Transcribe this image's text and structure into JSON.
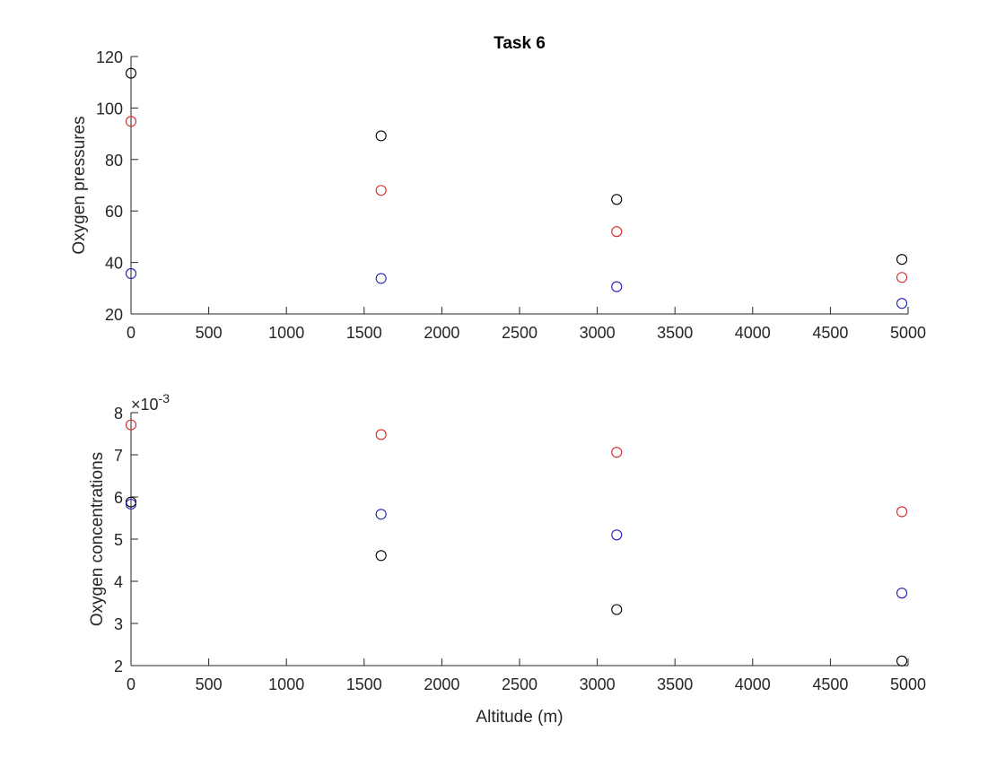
{
  "chart_data": [
    {
      "type": "scatter",
      "title": "Task 6",
      "xlabel": "",
      "ylabel": "Oxygen pressures",
      "xlim": [
        0,
        5000
      ],
      "ylim": [
        20,
        120
      ],
      "xticks": [
        "0",
        "500",
        "1000",
        "1500",
        "2000",
        "2500",
        "3000",
        "3500",
        "4000",
        "4500",
        "5000"
      ],
      "yticks": [
        "20",
        "40",
        "60",
        "80",
        "100",
        "120"
      ],
      "exponent_label": "",
      "grid": false,
      "marker": "circle-open",
      "series": [
        {
          "color": "#000000",
          "x": [
            0,
            1609,
            3125,
            4960
          ],
          "y": [
            113.5,
            89.2,
            64.5,
            41.2
          ]
        },
        {
          "color": "#d62728",
          "x": [
            0,
            1609,
            3125,
            4960
          ],
          "y": [
            94.8,
            68.0,
            52.0,
            34.2
          ]
        },
        {
          "color": "#1f1fb4",
          "x": [
            0,
            1609,
            3125,
            4960
          ],
          "y": [
            35.7,
            33.8,
            30.6,
            24.1
          ]
        }
      ]
    },
    {
      "type": "scatter",
      "title": "",
      "xlabel": "Altitude (m)",
      "ylabel": "Oxygen concentrations",
      "xlim": [
        0,
        5000
      ],
      "ylim": [
        2,
        8
      ],
      "xticks": [
        "0",
        "500",
        "1000",
        "1500",
        "2000",
        "2500",
        "3000",
        "3500",
        "4000",
        "4500",
        "5000"
      ],
      "yticks": [
        "2",
        "3",
        "4",
        "5",
        "6",
        "7",
        "8"
      ],
      "exponent_label": "×10",
      "exponent_power": "-3",
      "grid": false,
      "marker": "circle-open",
      "series": [
        {
          "color": "#000000",
          "x": [
            0,
            1609,
            3125,
            4960
          ],
          "y": [
            5.88,
            4.61,
            3.33,
            2.11
          ]
        },
        {
          "color": "#d62728",
          "x": [
            0,
            1609,
            3125,
            4960
          ],
          "y": [
            7.71,
            7.48,
            7.06,
            5.65
          ]
        },
        {
          "color": "#1f1fb4",
          "x": [
            0,
            1609,
            3125,
            4960
          ],
          "y": [
            5.83,
            5.59,
            5.1,
            3.72
          ]
        }
      ]
    }
  ]
}
